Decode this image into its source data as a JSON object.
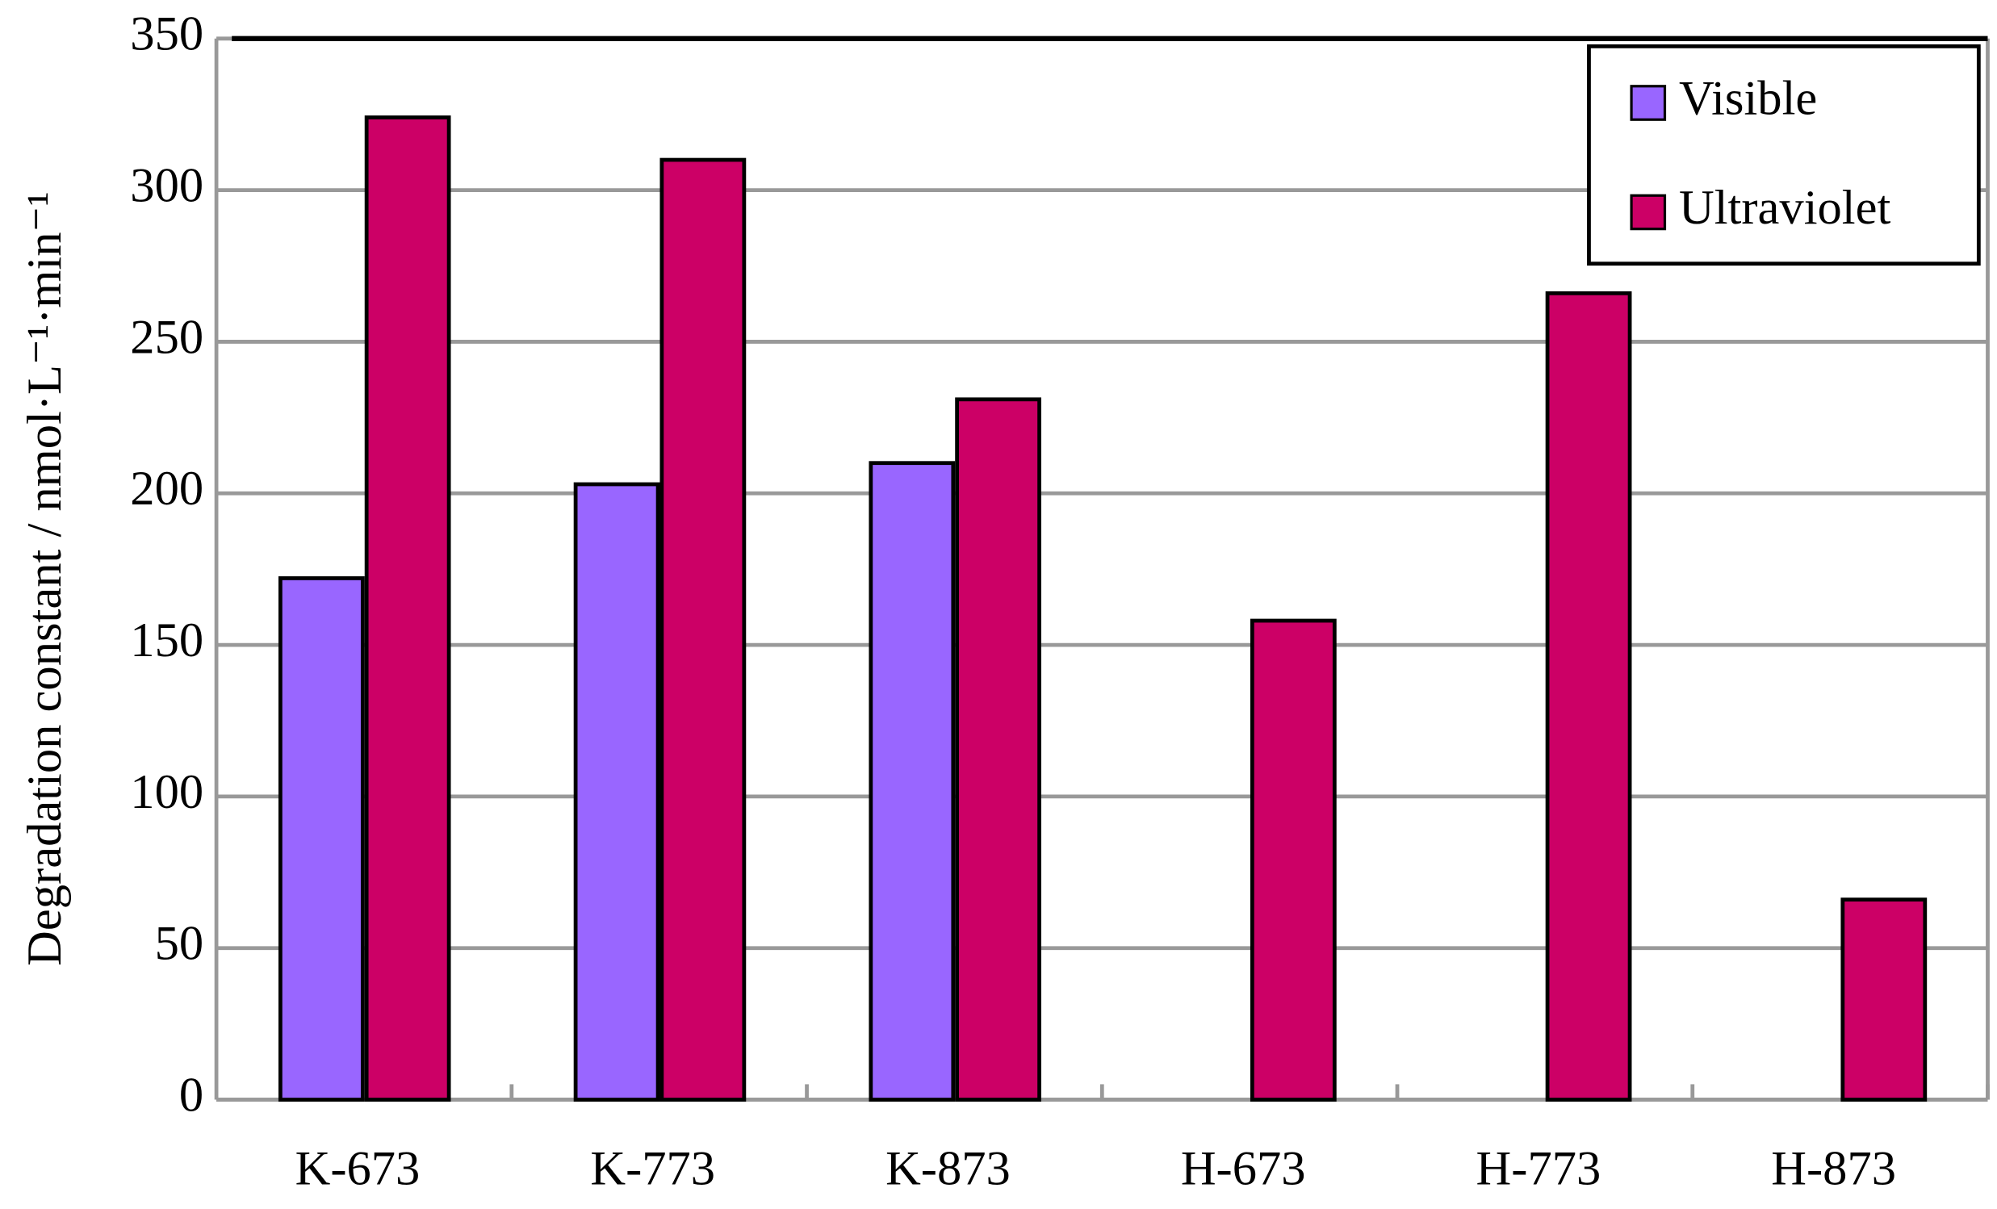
{
  "chart_data": {
    "type": "bar",
    "ylabel": "Degradation constant   / nmol·L⁻¹·min⁻¹",
    "categories": [
      "K-673",
      "K-773",
      "K-873",
      "H-673",
      "H-773",
      "H-873"
    ],
    "series": [
      {
        "name": "Visible",
        "color": "#9966ff",
        "values": [
          172,
          203,
          210,
          null,
          null,
          null
        ]
      },
      {
        "name": "Ultraviolet",
        "color": "#cc0066",
        "values": [
          324,
          310,
          231,
          158,
          266,
          66
        ]
      }
    ],
    "ylim": [
      0,
      350
    ],
    "yticks": [
      0,
      50,
      100,
      150,
      200,
      250,
      300,
      350
    ],
    "grid": true,
    "legend": "upper right"
  }
}
